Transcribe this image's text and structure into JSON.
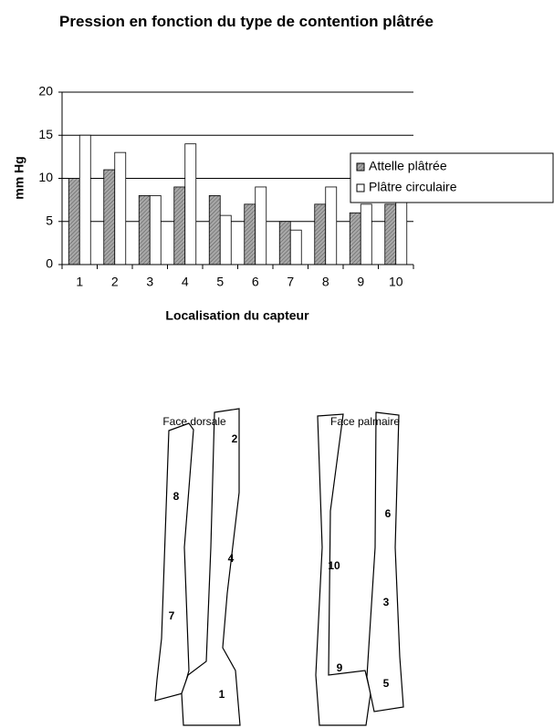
{
  "chart_data": {
    "type": "bar",
    "title": "Pression en fonction du type de contention plâtrée",
    "x_label": "Localisation du capteur",
    "y_label": "mm Hg",
    "categories": [
      "1",
      "2",
      "3",
      "4",
      "5",
      "6",
      "7",
      "8",
      "9",
      "10"
    ],
    "series": [
      {
        "name": "Attelle plâtrée",
        "color": "#a8a8a8",
        "values": [
          10,
          11,
          8,
          9,
          8,
          7,
          5,
          7,
          6,
          7
        ]
      },
      {
        "name": "Plâtre circulaire",
        "color": "#ffffff",
        "values": [
          15,
          13,
          8,
          14,
          5.7,
          9,
          4,
          9,
          7,
          9
        ]
      }
    ],
    "ylim": [
      0,
      20
    ],
    "yticks": [
      0,
      5,
      10,
      15,
      20
    ],
    "grid": true,
    "legend": "right"
  },
  "diagram": {
    "views": [
      "Face dorsale",
      "Face palmaire"
    ],
    "sensors": [
      "2",
      "8",
      "4",
      "7",
      "1",
      "10",
      "6",
      "3",
      "9",
      "5"
    ]
  }
}
